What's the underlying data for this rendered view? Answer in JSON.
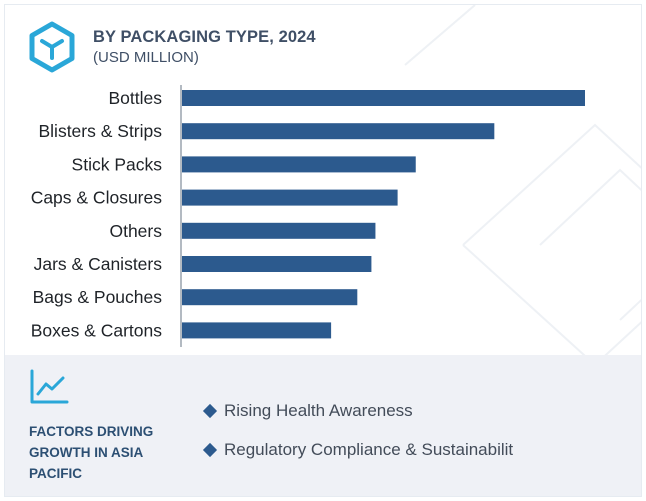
{
  "header": {
    "title": "BY PACKAGING TYPE, 2024",
    "subtitle": "(USD MILLION)",
    "logo_icon": "box-cube-icon"
  },
  "colors": {
    "bar": "#2c5a8e",
    "title": "#3f4f66",
    "axis": "#9aa3ad",
    "footer_bg": "#eff1f6",
    "accent": "#2aa7d8"
  },
  "chart_data": {
    "type": "bar",
    "orientation": "horizontal",
    "categories": [
      "Bottles",
      "Blisters & Strips",
      "Stick Packs",
      "Caps & Closures",
      "Others",
      "Jars & Canisters",
      "Bags & Pouches",
      "Boxes & Cartons"
    ],
    "values": [
      100,
      77.5,
      58,
      53.5,
      48,
      47,
      43.5,
      37
    ],
    "title": "BY PACKAGING TYPE, 2024",
    "subtitle": "(USD MILLION)",
    "xlabel": "",
    "ylabel": "",
    "xlim": [
      0,
      100
    ],
    "grid": false,
    "value_labels": false
  },
  "footer": {
    "icon": "line-chart-icon",
    "heading": "FACTORS DRIVING GROWTH IN ASIA PACIFIC",
    "factors": [
      "Rising Health Awareness",
      "Regulatory Compliance & Sustainabilit"
    ]
  }
}
